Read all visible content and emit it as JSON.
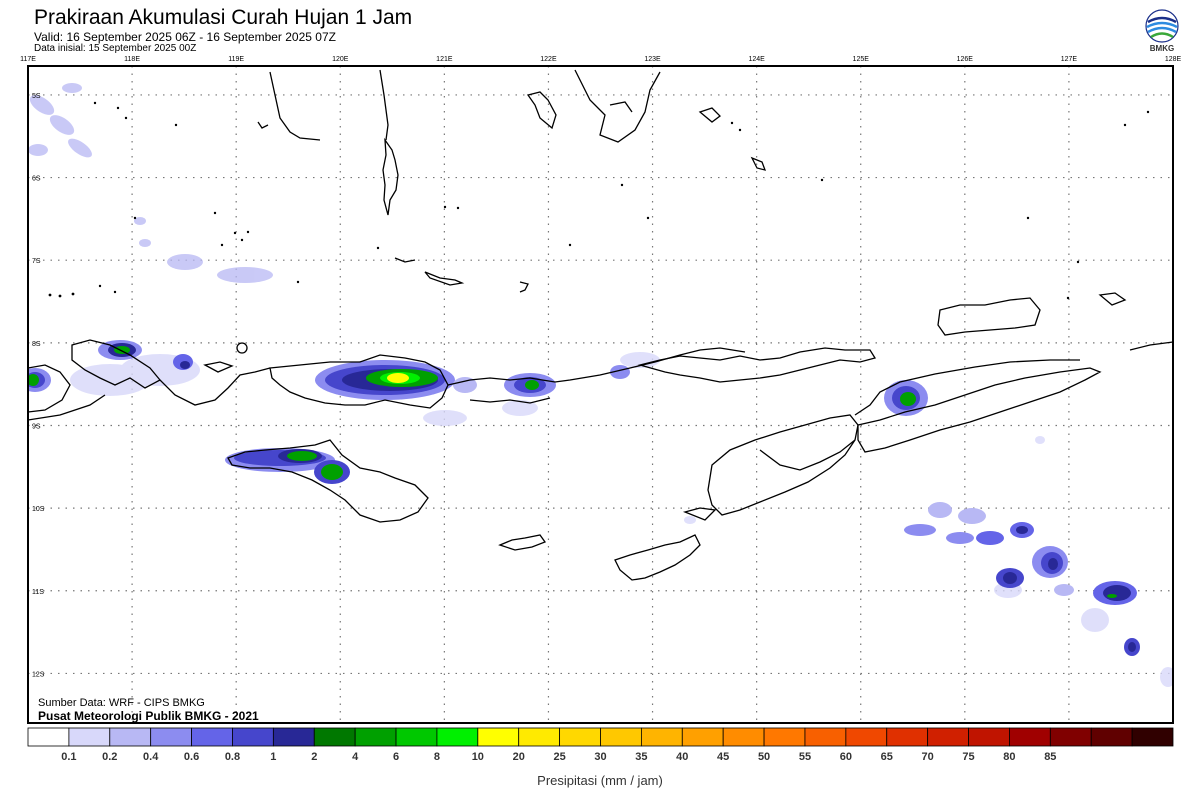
{
  "header": {
    "title": "Prakiraan Akumulasi Curah Hujan 1 Jam",
    "valid": "Valid: 16 September 2025 06Z - 16 September 2025 07Z",
    "initial": "Data inisial: 15 September 2025 00Z"
  },
  "logo": {
    "text": "BMKG",
    "icon": "bmkg-logo-icon",
    "colors": [
      "#1a2f8a",
      "#2d8be0",
      "#3aa83a"
    ]
  },
  "map": {
    "lon_ticks": [
      "117E",
      "118E",
      "119E",
      "120E",
      "121E",
      "122E",
      "123E",
      "124E",
      "125E",
      "126E",
      "127E",
      "128E"
    ],
    "lat_ticks": [
      "5S",
      "6S",
      "7S",
      "8S",
      "9S",
      "10S",
      "11S",
      "12S"
    ],
    "lon_range": [
      117,
      128
    ],
    "lat_range": [
      -4.65,
      -12.6
    ],
    "grid": "dotted"
  },
  "credits": {
    "source": "Sumber Data: WRF - CIPS BMKG",
    "org": "Pusat Meteorologi Publik BMKG - 2021"
  },
  "colorbar": {
    "label": "Presipitasi (mm / jam)",
    "colors": [
      "#ffffff",
      "#d8d8fa",
      "#b8b8f4",
      "#8c8cf0",
      "#6464e8",
      "#4646cc",
      "#282896",
      "#007800",
      "#00a000",
      "#00c800",
      "#00f000",
      "#ffff00",
      "#ffea00",
      "#ffd800",
      "#ffc800",
      "#ffb400",
      "#ffa000",
      "#ff8c00",
      "#ff7800",
      "#f86000",
      "#f04800",
      "#e03000",
      "#d02000",
      "#c01400",
      "#a00000",
      "#800000",
      "#600000",
      "#300000"
    ],
    "ticks": [
      "0.1",
      "0.2",
      "0.4",
      "0.6",
      "0.8",
      "1",
      "2",
      "4",
      "6",
      "8",
      "10",
      "20",
      "25",
      "30",
      "35",
      "40",
      "45",
      "50",
      "55",
      "60",
      "65",
      "70",
      "75",
      "80",
      "85"
    ]
  }
}
